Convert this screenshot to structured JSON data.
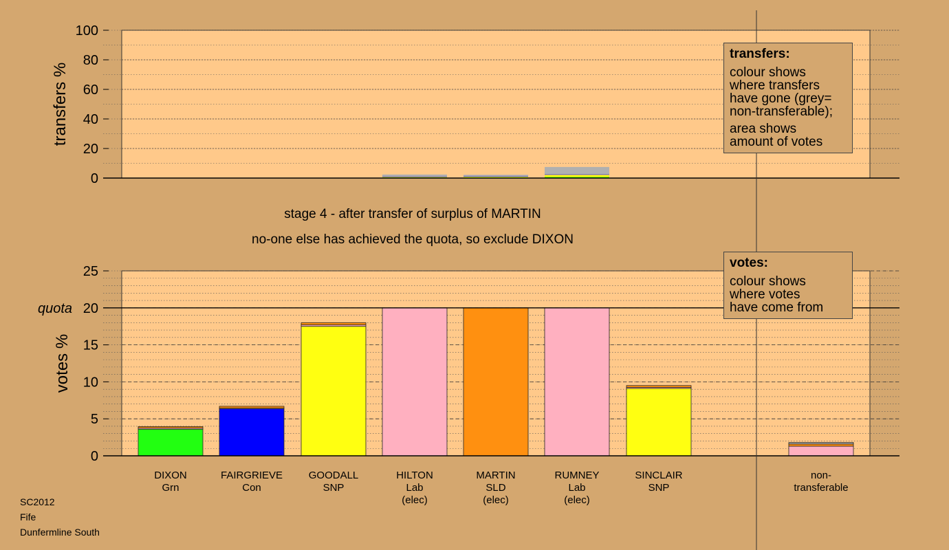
{
  "colors": {
    "background": "#d4a76f",
    "plot_background": "#ffc98a",
    "Grn": "#22ff11",
    "Con": "#0000ff",
    "SNP": "#ffff11",
    "Lab": "#ffb0c0",
    "SLD": "#ff9010",
    "nontransferable": "#b0b0b0"
  },
  "captions": {
    "line1": "stage 4 - after transfer of surplus of MARTIN",
    "line2": "no-one else has achieved the quota, so exclude DIXON"
  },
  "legend_transfers": {
    "title": "transfers:",
    "text1": "colour shows\nwhere transfers\nhave gone (grey=\nnon-transferable);",
    "text2": "area shows\namount of votes"
  },
  "legend_votes": {
    "title": "votes:",
    "text1": "colour shows\nwhere votes\nhave come from"
  },
  "footer": {
    "line1": "SC2012",
    "line2": "Fife",
    "line3": "Dunfermline South"
  },
  "chart_data": [
    {
      "type": "bar",
      "ylabel": "transfers %",
      "ylim": [
        0,
        100
      ],
      "yticks": [
        0,
        20,
        40,
        60,
        80,
        100
      ],
      "grid": true,
      "categories": [
        "DIXON",
        "FAIRGRIEVE",
        "GOODALL",
        "HILTON",
        "MARTIN",
        "RUMNEY",
        "SINCLAIR",
        "non-transferable"
      ],
      "stacks": [
        [],
        [],
        [],
        [
          {
            "party": "Grn",
            "value": 0.4
          },
          {
            "party": "SNP",
            "value": 0.4
          },
          {
            "party": "Con",
            "value": 0.3
          },
          {
            "party": "nontransferable",
            "value": 1.3
          }
        ],
        [
          {
            "party": "Grn",
            "value": 0.4
          },
          {
            "party": "SNP",
            "value": 0.5
          },
          {
            "party": "Con",
            "value": 0.3
          },
          {
            "party": "nontransferable",
            "value": 1.0
          }
        ],
        [
          {
            "party": "Grn",
            "value": 0.7
          },
          {
            "party": "SNP",
            "value": 1.5
          },
          {
            "party": "Con",
            "value": 0.3
          },
          {
            "party": "nontransferable",
            "value": 5.0
          }
        ],
        [],
        []
      ]
    },
    {
      "type": "bar",
      "ylabel": "votes %",
      "ylim": [
        0,
        25
      ],
      "yticks": [
        0,
        5,
        10,
        15,
        20,
        25
      ],
      "quota": 20,
      "quota_label": "quota",
      "grid": true,
      "categories": [
        "DIXON",
        "FAIRGRIEVE",
        "GOODALL",
        "HILTON",
        "MARTIN",
        "RUMNEY",
        "SINCLAIR",
        "non-transferable"
      ],
      "labels": [
        [
          "DIXON",
          "Grn"
        ],
        [
          "FAIRGRIEVE",
          "Con"
        ],
        [
          "GOODALL",
          "SNP"
        ],
        [
          "HILTON",
          "Lab",
          "(elec)"
        ],
        [
          "MARTIN",
          "SLD",
          "(elec)"
        ],
        [
          "RUMNEY",
          "Lab",
          "(elec)"
        ],
        [
          "SINCLAIR",
          "SNP"
        ],
        [
          "non-",
          "transferable"
        ]
      ],
      "stacks": [
        [
          {
            "party": "Grn",
            "value": 3.6
          },
          {
            "party": "Lab",
            "value": 0.15
          },
          {
            "party": "SLD",
            "value": 0.2
          }
        ],
        [
          {
            "party": "Con",
            "value": 6.35
          },
          {
            "party": "Lab",
            "value": 0.1
          },
          {
            "party": "SLD",
            "value": 0.25
          }
        ],
        [
          {
            "party": "SNP",
            "value": 17.5
          },
          {
            "party": "Lab",
            "value": 0.2
          },
          {
            "party": "SLD",
            "value": 0.3
          }
        ],
        [
          {
            "party": "Lab",
            "value": 20.0
          }
        ],
        [
          {
            "party": "SLD",
            "value": 20.0
          }
        ],
        [
          {
            "party": "Lab",
            "value": 20.0
          }
        ],
        [
          {
            "party": "SNP",
            "value": 9.1
          },
          {
            "party": "Lab",
            "value": 0.15
          },
          {
            "party": "SLD",
            "value": 0.25
          }
        ],
        [
          {
            "party": "Lab",
            "value": 1.3
          },
          {
            "party": "SLD",
            "value": 0.3
          },
          {
            "party": "nontransferable",
            "value": 0.2
          }
        ]
      ]
    }
  ]
}
